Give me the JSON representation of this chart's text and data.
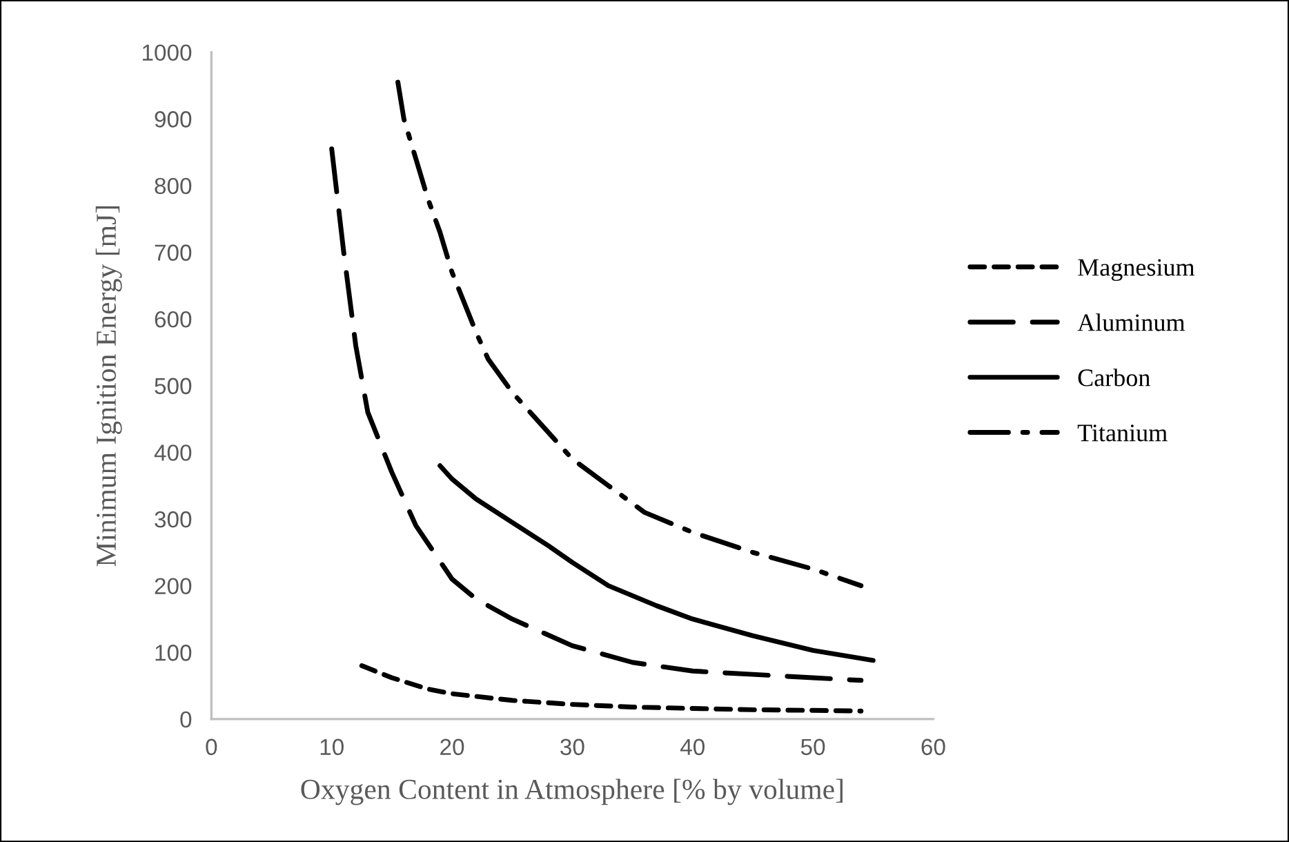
{
  "chart_data": {
    "type": "line",
    "xlabel": "Oxygen Content in Atmosphere [% by volume]",
    "ylabel": "Minimum Ignition Energy [mJ]",
    "xlim": [
      0,
      60
    ],
    "xticks": [
      0,
      10,
      20,
      30,
      40,
      50,
      60
    ],
    "ylim": [
      0,
      1000
    ],
    "yticks": [
      0,
      100,
      200,
      300,
      400,
      500,
      600,
      700,
      800,
      900,
      1000
    ],
    "grid": false,
    "legend": "right",
    "marker": "none",
    "series": [
      {
        "name": "Magnesium",
        "color": "#000000",
        "line_style": "dotted",
        "x": [
          12.5,
          15,
          18,
          20,
          25,
          30,
          35,
          40,
          45,
          50,
          54
        ],
        "values": [
          80,
          62,
          45,
          38,
          28,
          22,
          18,
          16,
          14,
          13,
          12
        ]
      },
      {
        "name": "Aluminum",
        "color": "#000000",
        "line_style": "dashed",
        "x": [
          10,
          11,
          12,
          13,
          15,
          17,
          18.5,
          20,
          22,
          25,
          30,
          35,
          40,
          45,
          50,
          54
        ],
        "values": [
          855,
          700,
          560,
          460,
          370,
          290,
          250,
          210,
          180,
          150,
          110,
          85,
          72,
          67,
          62,
          58
        ]
      },
      {
        "name": "Carbon",
        "color": "#000000",
        "line_style": "solid",
        "x": [
          19,
          20,
          22,
          25,
          28,
          30,
          33,
          37,
          40,
          45,
          50,
          55
        ],
        "values": [
          380,
          360,
          330,
          295,
          260,
          235,
          200,
          170,
          150,
          125,
          103,
          88
        ]
      },
      {
        "name": "Titanium",
        "color": "#000000",
        "line_style": "dashdot",
        "x": [
          15.5,
          16,
          17,
          18,
          19,
          20,
          22,
          23,
          25,
          28,
          30,
          33,
          36,
          40,
          45,
          50,
          54
        ],
        "values": [
          955,
          900,
          840,
          780,
          730,
          670,
          580,
          540,
          490,
          430,
          390,
          350,
          310,
          280,
          250,
          225,
          200
        ]
      }
    ]
  }
}
